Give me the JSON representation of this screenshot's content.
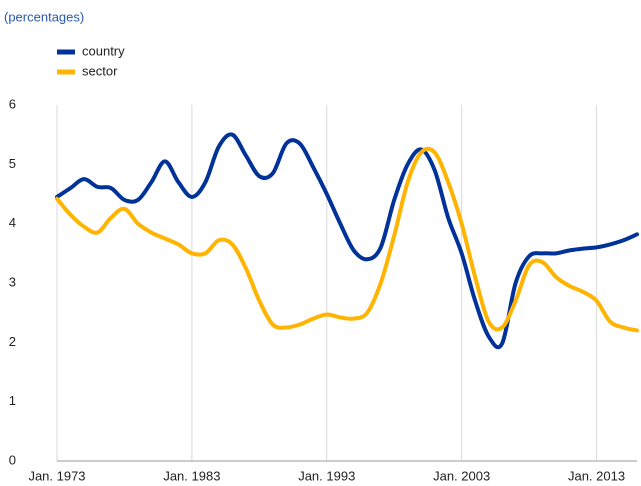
{
  "chart_data": {
    "type": "line",
    "subtitle": "(percentages)",
    "x": [
      1973,
      1974,
      1975,
      1976,
      1977,
      1978,
      1979,
      1980,
      1981,
      1982,
      1983,
      1984,
      1985,
      1986,
      1987,
      1988,
      1989,
      1990,
      1991,
      1992,
      1993,
      1994,
      1995,
      1996,
      1997,
      1998,
      1999,
      2000,
      2001,
      2002,
      2003,
      2004,
      2005,
      2006,
      2007,
      2008,
      2009,
      2010,
      2011,
      2012,
      2013,
      2014,
      2015,
      2016
    ],
    "series": [
      {
        "name": "country",
        "color": "#003299",
        "values": [
          4.45,
          4.6,
          4.75,
          4.62,
          4.6,
          4.4,
          4.4,
          4.7,
          5.05,
          4.7,
          4.45,
          4.7,
          5.3,
          5.5,
          5.15,
          4.8,
          4.85,
          5.35,
          5.35,
          4.95,
          4.5,
          4.0,
          3.55,
          3.4,
          3.6,
          4.4,
          5.0,
          5.25,
          4.9,
          4.1,
          3.5,
          2.7,
          2.1,
          1.98,
          3.0,
          3.45,
          3.5,
          3.5,
          3.55,
          3.58,
          3.6,
          3.65,
          3.72,
          3.82
        ]
      },
      {
        "name": "sector",
        "color": "#ffb400",
        "values": [
          4.42,
          4.15,
          3.95,
          3.85,
          4.1,
          4.25,
          4.0,
          3.85,
          3.75,
          3.65,
          3.5,
          3.5,
          3.72,
          3.65,
          3.25,
          2.7,
          2.3,
          2.25,
          2.3,
          2.4,
          2.47,
          2.42,
          2.4,
          2.5,
          3.0,
          3.8,
          4.7,
          5.2,
          5.2,
          4.7,
          4.0,
          3.1,
          2.35,
          2.25,
          2.7,
          3.3,
          3.35,
          3.1,
          2.95,
          2.85,
          2.7,
          2.35,
          2.25,
          2.2
        ]
      }
    ],
    "xlim": [
      1973,
      2016
    ],
    "xticks": [
      {
        "value": 1973,
        "label": "Jan. 1973"
      },
      {
        "value": 1983,
        "label": "Jan. 1983"
      },
      {
        "value": 1993,
        "label": "Jan. 1993"
      },
      {
        "value": 2003,
        "label": "Jan. 2003"
      },
      {
        "value": 2013,
        "label": "Jan. 2013"
      }
    ],
    "ylim": [
      0,
      6
    ],
    "yticks": [
      0,
      1,
      2,
      3,
      4,
      5,
      6
    ],
    "grid": true
  }
}
